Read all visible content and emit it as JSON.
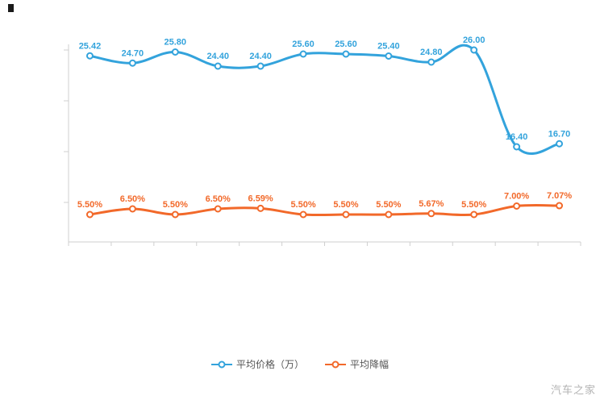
{
  "watermark": "汽车之家",
  "legend": {
    "items": [
      {
        "label": "平均价格（万）",
        "color": "#33a3dc"
      },
      {
        "label": "平均降幅",
        "color": "#f2692a"
      }
    ]
  },
  "chart_data": {
    "type": "line",
    "title": "",
    "xlabel": "",
    "ylabel": "",
    "grid": false,
    "legend_position": "bottom",
    "x_tick_labels_visible": false,
    "points_count": 12,
    "series": [
      {
        "name": "平均价格（万）",
        "color": "#33a3dc",
        "values": [
          25.42,
          24.7,
          25.8,
          24.4,
          24.4,
          25.6,
          25.6,
          25.4,
          24.8,
          26.0,
          16.4,
          16.7
        ],
        "labels": [
          "25.42",
          "24.70",
          "25.80",
          "24.40",
          "24.40",
          "25.60",
          "25.60",
          "25.40",
          "24.80",
          "26.00",
          "16.40",
          "16.70"
        ]
      },
      {
        "name": "平均降幅",
        "color": "#f2692a",
        "values": [
          5.5,
          6.5,
          5.5,
          6.5,
          6.59,
          5.5,
          5.5,
          5.5,
          5.67,
          5.5,
          7.0,
          7.07
        ],
        "labels": [
          "5.50%",
          "6.50%",
          "5.50%",
          "6.50%",
          "6.59%",
          "5.50%",
          "5.50%",
          "5.50%",
          "5.67%",
          "5.50%",
          "7.00%",
          "7.07%"
        ]
      }
    ]
  }
}
